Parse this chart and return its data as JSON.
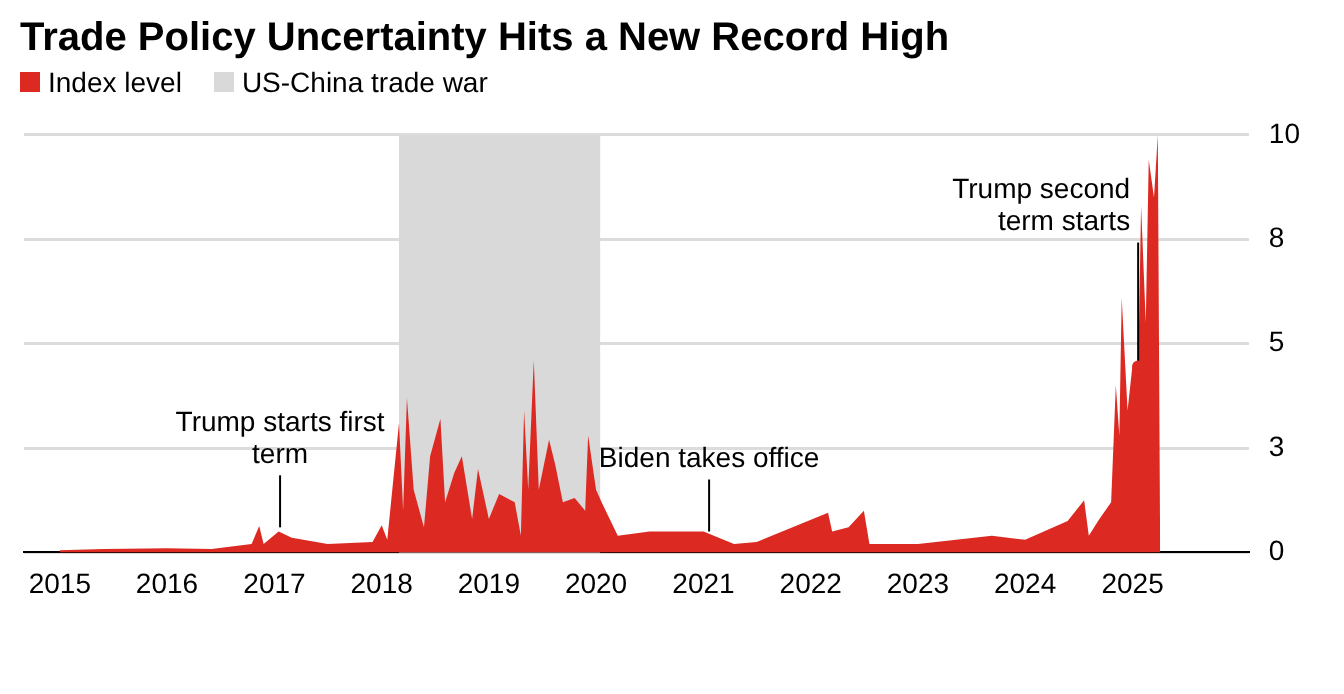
{
  "chart_data": {
    "type": "area",
    "title": "Trade Policy Uncertainty Hits a New Record High",
    "legend": "top left",
    "grid": "y",
    "xlim": [
      "2014-09-01",
      "2026-02-01"
    ],
    "xticks": [
      "2015",
      "2016",
      "2017",
      "2018",
      "2019",
      "2020",
      "2021",
      "2022",
      "2023",
      "2024",
      "2025"
    ],
    "ylim": [
      0,
      10
    ],
    "yticks": [
      0,
      {
        "value": 2.5,
        "label": "3"
      },
      5,
      {
        "value": 7.5,
        "label": "8"
      },
      10
    ],
    "bands": [
      {
        "axis": "x",
        "from": "2018-03-01",
        "to": "2020-01-15",
        "label": "US-China trade war",
        "color": "#d9d9d9"
      }
    ],
    "annotations": [
      {
        "text": "Trump starts first term",
        "x": "2017-01-20",
        "y": 0.6
      },
      {
        "text": "Biden takes office",
        "x": "2021-01-20",
        "y": 0.5
      },
      {
        "text": "Trump second term starts",
        "x": "2025-01-20",
        "y": 4.45
      }
    ],
    "series": [
      {
        "name": "Index level",
        "color": "#dc2a23",
        "x": [
          "2015-01-01",
          "2015-06-01",
          "2016-01-01",
          "2016-06-01",
          "2016-10-15",
          "2016-11-10",
          "2016-11-25",
          "2017-01-15",
          "2017-03-01",
          "2017-07-01",
          "2017-12-01",
          "2018-01-01",
          "2018-01-20",
          "2018-03-01",
          "2018-03-15",
          "2018-03-28",
          "2018-04-20",
          "2018-05-25",
          "2018-06-15",
          "2018-07-20",
          "2018-08-05",
          "2018-09-05",
          "2018-10-01",
          "2018-11-05",
          "2018-11-25",
          "2019-01-01",
          "2019-02-05",
          "2019-03-30",
          "2019-04-20",
          "2019-05-01",
          "2019-05-15",
          "2019-06-03",
          "2019-06-20",
          "2019-07-25",
          "2019-08-15",
          "2019-09-10",
          "2019-10-20",
          "2019-11-25",
          "2019-12-05",
          "2020-01-01",
          "2020-01-20",
          "2020-03-15",
          "2020-07-01",
          "2021-01-01",
          "2021-04-15",
          "2021-07-01",
          "2022-03-01",
          "2022-03-15",
          "2022-05-10",
          "2022-07-01",
          "2022-07-20",
          "2023-01-01",
          "2023-09-10",
          "2024-01-01",
          "2024-05-25",
          "2024-07-20",
          "2024-08-05",
          "2024-09-10",
          "2024-10-20",
          "2024-11-05",
          "2024-11-17",
          "2024-11-25",
          "2024-12-15",
          "2025-01-01",
          "2025-01-20",
          "2025-01-30",
          "2025-02-15",
          "2025-02-25",
          "2025-03-15",
          "2025-03-28",
          "2025-04-05"
        ],
        "values": [
          0.05,
          0.08,
          0.1,
          0.08,
          0.2,
          0.63,
          0.2,
          0.5,
          0.35,
          0.2,
          0.25,
          0.65,
          0.3,
          3.1,
          1.0,
          3.7,
          1.5,
          0.6,
          2.3,
          3.2,
          1.2,
          1.9,
          2.3,
          0.8,
          2.0,
          0.8,
          1.4,
          1.2,
          0.4,
          3.4,
          1.5,
          4.6,
          1.5,
          2.7,
          2.1,
          1.2,
          1.3,
          1.0,
          2.8,
          1.5,
          1.2,
          0.4,
          0.5,
          0.5,
          0.2,
          0.25,
          0.95,
          0.5,
          0.6,
          1.0,
          0.2,
          0.2,
          0.4,
          0.3,
          0.75,
          1.25,
          0.4,
          0.8,
          1.2,
          4.0,
          2.8,
          6.1,
          3.4,
          4.5,
          4.3,
          8.3,
          5.5,
          9.4,
          8.5,
          10,
          0
        ]
      }
    ]
  }
}
